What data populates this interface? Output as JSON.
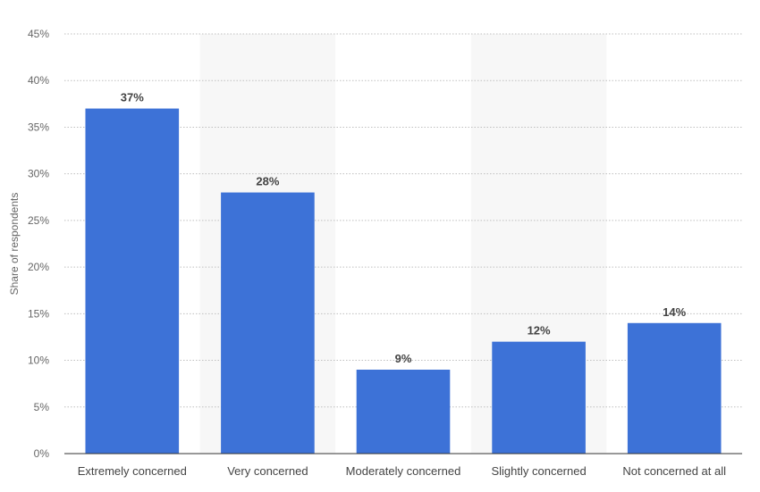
{
  "chart_data": {
    "type": "bar",
    "categories": [
      "Extremely concerned",
      "Very concerned",
      "Moderately concerned",
      "Slightly concerned",
      "Not concerned at all"
    ],
    "values": [
      37,
      28,
      9,
      12,
      14
    ],
    "data_labels": [
      "37%",
      "28%",
      "9%",
      "12%",
      "14%"
    ],
    "ylabel": "Share of respondents",
    "ylim": [
      0,
      45
    ],
    "yticks": [
      0,
      5,
      10,
      15,
      20,
      25,
      30,
      35,
      40,
      45
    ],
    "ytick_labels": [
      "0%",
      "5%",
      "10%",
      "15%",
      "20%",
      "25%",
      "30%",
      "35%",
      "40%",
      "45%"
    ],
    "grid": true,
    "colors": {
      "bar": "#3d72d7",
      "grid": "#bfbfbf",
      "band": "#f7f7f7",
      "axis": "#333333"
    }
  }
}
